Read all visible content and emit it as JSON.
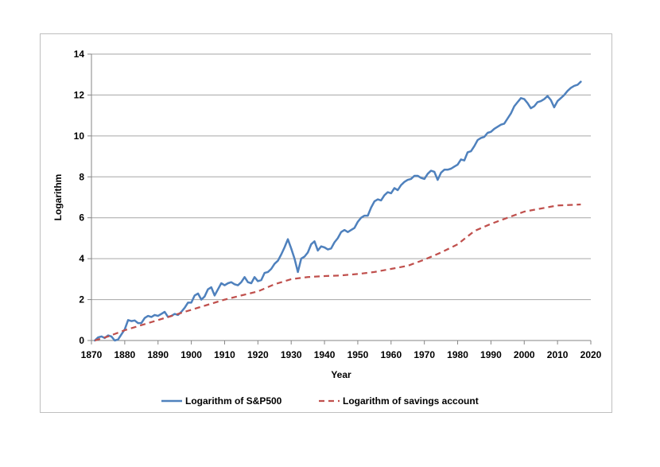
{
  "chart_data": {
    "type": "line",
    "title": "",
    "xlabel": "Year",
    "ylabel": "Logarithm",
    "xlim": [
      1870,
      2020
    ],
    "ylim": [
      0,
      14
    ],
    "xticks": [
      1870,
      1880,
      1890,
      1900,
      1910,
      1920,
      1930,
      1940,
      1950,
      1960,
      1970,
      1980,
      1990,
      2000,
      2010,
      2020
    ],
    "yticks": [
      0,
      2,
      4,
      6,
      8,
      10,
      12,
      14
    ],
    "grid": "horizontal",
    "legend_position": "bottom",
    "series": [
      {
        "name": "Logarithm of  S&P500",
        "style": "solid",
        "color": "#4f81bd",
        "points": [
          [
            1871,
            0.0
          ],
          [
            1872,
            0.15
          ],
          [
            1873,
            0.2
          ],
          [
            1874,
            0.12
          ],
          [
            1875,
            0.25
          ],
          [
            1876,
            0.2
          ],
          [
            1877,
            0.0
          ],
          [
            1878,
            0.05
          ],
          [
            1879,
            0.3
          ],
          [
            1880,
            0.55
          ],
          [
            1881,
            1.0
          ],
          [
            1882,
            0.95
          ],
          [
            1883,
            0.98
          ],
          [
            1884,
            0.85
          ],
          [
            1885,
            0.85
          ],
          [
            1886,
            1.1
          ],
          [
            1887,
            1.2
          ],
          [
            1888,
            1.15
          ],
          [
            1889,
            1.25
          ],
          [
            1890,
            1.2
          ],
          [
            1891,
            1.3
          ],
          [
            1892,
            1.4
          ],
          [
            1893,
            1.15
          ],
          [
            1894,
            1.2
          ],
          [
            1895,
            1.3
          ],
          [
            1896,
            1.25
          ],
          [
            1897,
            1.4
          ],
          [
            1898,
            1.6
          ],
          [
            1899,
            1.85
          ],
          [
            1900,
            1.85
          ],
          [
            1901,
            2.2
          ],
          [
            1902,
            2.3
          ],
          [
            1903,
            2.0
          ],
          [
            1904,
            2.15
          ],
          [
            1905,
            2.5
          ],
          [
            1906,
            2.6
          ],
          [
            1907,
            2.2
          ],
          [
            1908,
            2.5
          ],
          [
            1909,
            2.8
          ],
          [
            1910,
            2.7
          ],
          [
            1911,
            2.8
          ],
          [
            1912,
            2.85
          ],
          [
            1913,
            2.75
          ],
          [
            1914,
            2.7
          ],
          [
            1915,
            2.85
          ],
          [
            1916,
            3.1
          ],
          [
            1917,
            2.85
          ],
          [
            1918,
            2.8
          ],
          [
            1919,
            3.1
          ],
          [
            1920,
            2.9
          ],
          [
            1921,
            2.95
          ],
          [
            1922,
            3.3
          ],
          [
            1923,
            3.35
          ],
          [
            1924,
            3.5
          ],
          [
            1925,
            3.75
          ],
          [
            1926,
            3.9
          ],
          [
            1927,
            4.2
          ],
          [
            1928,
            4.55
          ],
          [
            1929,
            4.95
          ],
          [
            1930,
            4.5
          ],
          [
            1931,
            4.0
          ],
          [
            1932,
            3.35
          ],
          [
            1933,
            4.0
          ],
          [
            1934,
            4.1
          ],
          [
            1935,
            4.3
          ],
          [
            1936,
            4.7
          ],
          [
            1937,
            4.85
          ],
          [
            1938,
            4.4
          ],
          [
            1939,
            4.6
          ],
          [
            1940,
            4.55
          ],
          [
            1941,
            4.45
          ],
          [
            1942,
            4.5
          ],
          [
            1943,
            4.8
          ],
          [
            1944,
            5.0
          ],
          [
            1945,
            5.3
          ],
          [
            1946,
            5.4
          ],
          [
            1947,
            5.3
          ],
          [
            1948,
            5.4
          ],
          [
            1949,
            5.5
          ],
          [
            1950,
            5.8
          ],
          [
            1951,
            6.0
          ],
          [
            1952,
            6.1
          ],
          [
            1953,
            6.1
          ],
          [
            1954,
            6.5
          ],
          [
            1955,
            6.8
          ],
          [
            1956,
            6.9
          ],
          [
            1957,
            6.85
          ],
          [
            1958,
            7.1
          ],
          [
            1959,
            7.25
          ],
          [
            1960,
            7.2
          ],
          [
            1961,
            7.45
          ],
          [
            1962,
            7.35
          ],
          [
            1963,
            7.6
          ],
          [
            1964,
            7.75
          ],
          [
            1965,
            7.85
          ],
          [
            1966,
            7.9
          ],
          [
            1967,
            8.05
          ],
          [
            1968,
            8.05
          ],
          [
            1969,
            7.95
          ],
          [
            1970,
            7.9
          ],
          [
            1971,
            8.15
          ],
          [
            1972,
            8.3
          ],
          [
            1973,
            8.25
          ],
          [
            1974,
            7.85
          ],
          [
            1975,
            8.2
          ],
          [
            1976,
            8.35
          ],
          [
            1977,
            8.35
          ],
          [
            1978,
            8.4
          ],
          [
            1979,
            8.5
          ],
          [
            1980,
            8.6
          ],
          [
            1981,
            8.85
          ],
          [
            1982,
            8.8
          ],
          [
            1983,
            9.2
          ],
          [
            1984,
            9.25
          ],
          [
            1985,
            9.5
          ],
          [
            1986,
            9.8
          ],
          [
            1987,
            9.9
          ],
          [
            1988,
            9.95
          ],
          [
            1989,
            10.15
          ],
          [
            1990,
            10.2
          ],
          [
            1991,
            10.35
          ],
          [
            1992,
            10.45
          ],
          [
            1993,
            10.55
          ],
          [
            1994,
            10.6
          ],
          [
            1995,
            10.85
          ],
          [
            1996,
            11.1
          ],
          [
            1997,
            11.45
          ],
          [
            1998,
            11.65
          ],
          [
            1999,
            11.85
          ],
          [
            2000,
            11.8
          ],
          [
            2001,
            11.6
          ],
          [
            2002,
            11.35
          ],
          [
            2003,
            11.45
          ],
          [
            2004,
            11.65
          ],
          [
            2005,
            11.7
          ],
          [
            2006,
            11.8
          ],
          [
            2007,
            11.95
          ],
          [
            2008,
            11.75
          ],
          [
            2009,
            11.4
          ],
          [
            2010,
            11.7
          ],
          [
            2011,
            11.85
          ],
          [
            2012,
            12.0
          ],
          [
            2013,
            12.2
          ],
          [
            2014,
            12.35
          ],
          [
            2015,
            12.45
          ],
          [
            2016,
            12.5
          ],
          [
            2017,
            12.65
          ]
        ]
      },
      {
        "name": "Logarithm of savings account",
        "style": "dashed",
        "color": "#c0504d",
        "points": [
          [
            1871,
            0.0
          ],
          [
            1875,
            0.2
          ],
          [
            1880,
            0.5
          ],
          [
            1885,
            0.75
          ],
          [
            1890,
            1.0
          ],
          [
            1895,
            1.25
          ],
          [
            1900,
            1.5
          ],
          [
            1905,
            1.75
          ],
          [
            1910,
            2.0
          ],
          [
            1915,
            2.2
          ],
          [
            1920,
            2.4
          ],
          [
            1925,
            2.75
          ],
          [
            1930,
            3.0
          ],
          [
            1935,
            3.1
          ],
          [
            1940,
            3.15
          ],
          [
            1945,
            3.18
          ],
          [
            1950,
            3.25
          ],
          [
            1955,
            3.35
          ],
          [
            1960,
            3.5
          ],
          [
            1965,
            3.65
          ],
          [
            1970,
            3.95
          ],
          [
            1975,
            4.3
          ],
          [
            1980,
            4.7
          ],
          [
            1985,
            5.35
          ],
          [
            1990,
            5.7
          ],
          [
            1995,
            6.0
          ],
          [
            2000,
            6.3
          ],
          [
            2005,
            6.45
          ],
          [
            2010,
            6.6
          ],
          [
            2017,
            6.65
          ]
        ]
      }
    ]
  }
}
